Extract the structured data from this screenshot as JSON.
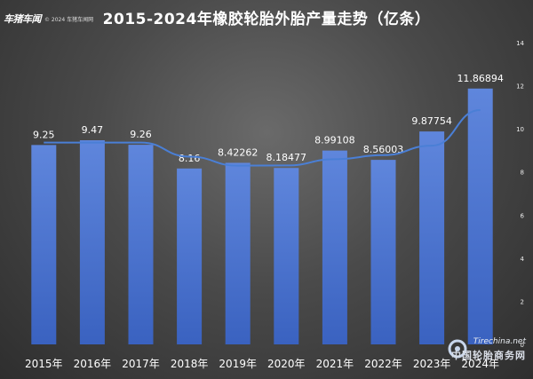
{
  "title": "2015-2024年橡胶轮胎外胎产量走势（亿条）",
  "watermark": {
    "logo": "车猪车闻",
    "copyright": "© 2024 车猪车闻网",
    "site": "Tirechina.net",
    "site_cn": "中国轮胎商务网"
  },
  "colors": {
    "bar_top": "#5f86dc",
    "bar_bottom": "#3a62c0",
    "line": "#4a7fd6",
    "text": "#ffffff",
    "tick": "#eeeeee"
  },
  "chart_data": {
    "type": "bar",
    "title": "2015-2024年橡胶轮胎外胎产量走势（亿条）",
    "categories": [
      "2015年",
      "2016年",
      "2017年",
      "2018年",
      "2019年",
      "2020年",
      "2021年",
      "2022年",
      "2023年",
      "2024年"
    ],
    "values": [
      9.25,
      9.47,
      9.26,
      8.16,
      8.42262,
      8.18477,
      8.99108,
      8.56003,
      9.87754,
      11.86894
    ],
    "data_labels": [
      "9.25",
      "9.47",
      "9.26",
      "8.16",
      "8.42262",
      "8.18477",
      "8.99108",
      "8.56003",
      "9.87754",
      "11.86894"
    ],
    "trendline": {
      "type": "moving-average",
      "values": [
        9.36,
        9.365,
        8.71,
        8.29,
        8.3,
        8.59,
        8.78,
        9.22,
        10.87
      ]
    },
    "ylim": [
      0,
      14
    ],
    "y_ticks": [
      "0",
      "2",
      "4",
      "6",
      "8",
      "10",
      "12",
      "14"
    ],
    "y_axis_position": "right",
    "grid": false,
    "legend": "none"
  }
}
